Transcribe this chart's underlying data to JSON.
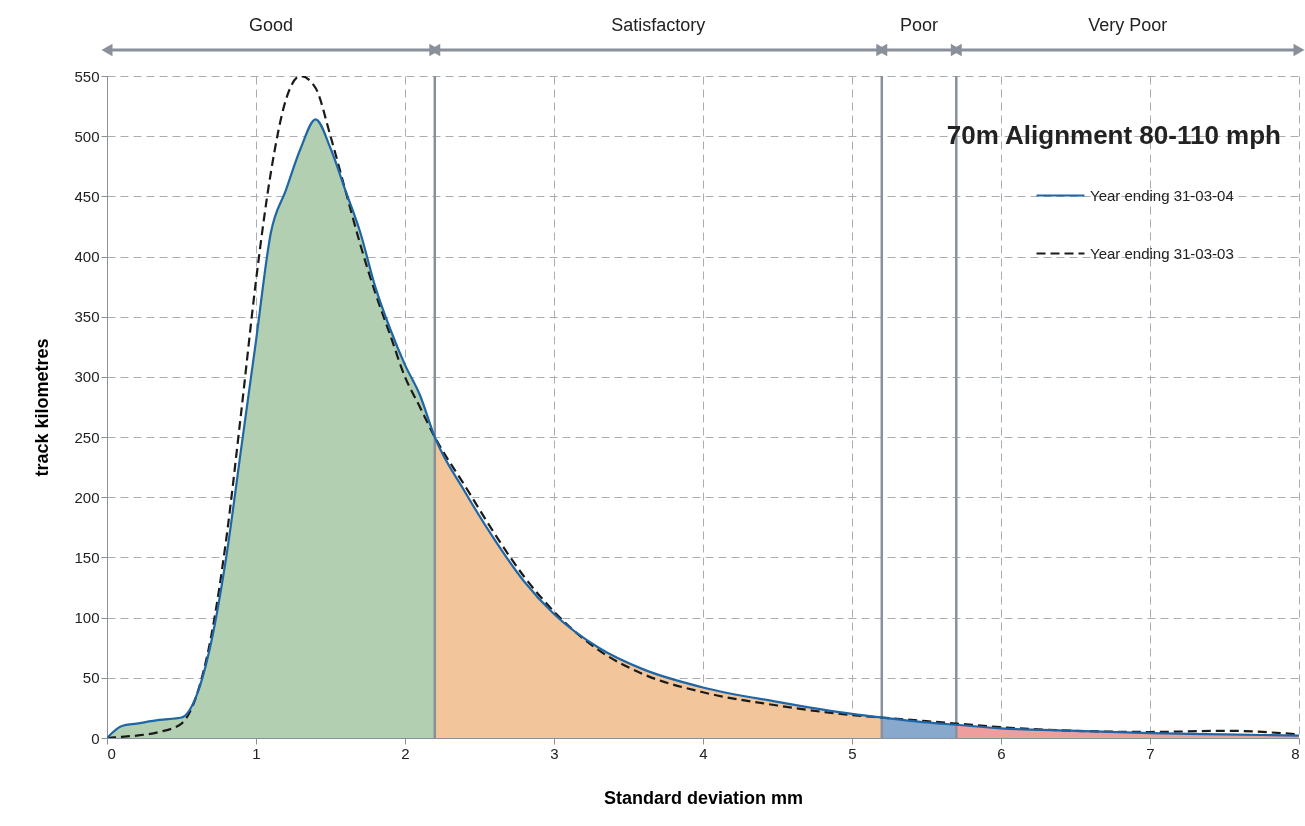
{
  "chart_data": {
    "type": "line",
    "title": "70m Alignment 80-110 mph",
    "xlabel": "Standard deviation mm",
    "ylabel": "track kilometres",
    "x": [
      0,
      0.1,
      0.2,
      0.35,
      0.5,
      0.6,
      0.7,
      0.8,
      0.9,
      1.0,
      1.1,
      1.2,
      1.3,
      1.4,
      1.5,
      1.6,
      1.7,
      1.8,
      1.9,
      2.0,
      2.1,
      2.2,
      2.4,
      2.6,
      2.8,
      3.0,
      3.3,
      3.6,
      4.0,
      4.5,
      5.0,
      5.2,
      5.5,
      5.7,
      6.0,
      6.5,
      7.0,
      7.5,
      8.0
    ],
    "series": [
      {
        "type": "area",
        "color": "#b2cfb2",
        "x": [
          0,
          0.1,
          0.2,
          0.35,
          0.5,
          0.6,
          0.7,
          0.8,
          0.9,
          1.0,
          1.1,
          1.2,
          1.3,
          1.4,
          1.5,
          1.6,
          1.7,
          1.8,
          1.9,
          2.0,
          2.1,
          2.2
        ],
        "values": [
          0,
          10,
          12,
          15,
          17,
          35,
          80,
          150,
          240,
          330,
          420,
          455,
          490,
          514,
          490,
          455,
          420,
          375,
          340,
          310,
          285,
          250
        ]
      },
      {
        "type": "area",
        "color": "#f2c69a",
        "x": [
          2.2,
          2.4,
          2.6,
          2.8,
          3.0,
          3.3,
          3.6,
          4.0,
          4.5,
          5.0,
          5.2
        ],
        "values": [
          250,
          205,
          165,
          130,
          103,
          75,
          57,
          42,
          30,
          20,
          17
        ]
      },
      {
        "type": "area",
        "color": "#89a9cc",
        "x": [
          5.2,
          5.5,
          5.7
        ],
        "values": [
          17,
          13,
          11
        ]
      },
      {
        "type": "area",
        "color": "#ef9e9e",
        "x": [
          5.7,
          6.0,
          6.5,
          7.0,
          7.5,
          8.0
        ],
        "values": [
          11,
          8,
          6,
          4,
          3,
          2
        ]
      },
      {
        "name": "Year ending 31-03-04",
        "color": "#1f66a6",
        "line_style": "solid",
        "values": [
          0,
          10,
          12,
          15,
          17,
          35,
          80,
          150,
          240,
          330,
          420,
          455,
          490,
          514,
          490,
          455,
          420,
          375,
          340,
          310,
          285,
          250,
          205,
          165,
          130,
          103,
          75,
          57,
          42,
          30,
          20,
          17,
          13,
          11,
          8,
          6,
          4,
          3,
          2
        ]
      },
      {
        "name": "Year ending 31-03-03",
        "color": "#1a1a1a",
        "line_style": "dashed",
        "values": [
          0,
          1,
          2,
          5,
          12,
          35,
          85,
          165,
          270,
          380,
          470,
          530,
          550,
          540,
          500,
          455,
          410,
          370,
          335,
          300,
          275,
          250,
          210,
          170,
          134,
          105,
          73,
          53,
          38,
          27,
          19,
          17,
          14,
          12,
          9,
          6,
          5,
          6,
          3
        ]
      }
    ],
    "xlim": [
      0,
      8
    ],
    "xticks": [
      0,
      1,
      2,
      3,
      4,
      5,
      6,
      7,
      8
    ],
    "ylim": [
      0,
      550
    ],
    "yticks": [
      0,
      50,
      100,
      150,
      200,
      250,
      300,
      350,
      400,
      450,
      500,
      550
    ],
    "grid": true,
    "legend": "top right",
    "ref_lines": [
      {
        "axis": "x",
        "value": 2.2,
        "color": "#8a9099"
      },
      {
        "axis": "x",
        "value": 5.2,
        "color": "#8a9099"
      },
      {
        "axis": "x",
        "value": 5.7,
        "color": "#8a9099"
      }
    ],
    "annotations": [
      "Good",
      "Satisfactory",
      "Poor",
      "Very Poor"
    ]
  }
}
